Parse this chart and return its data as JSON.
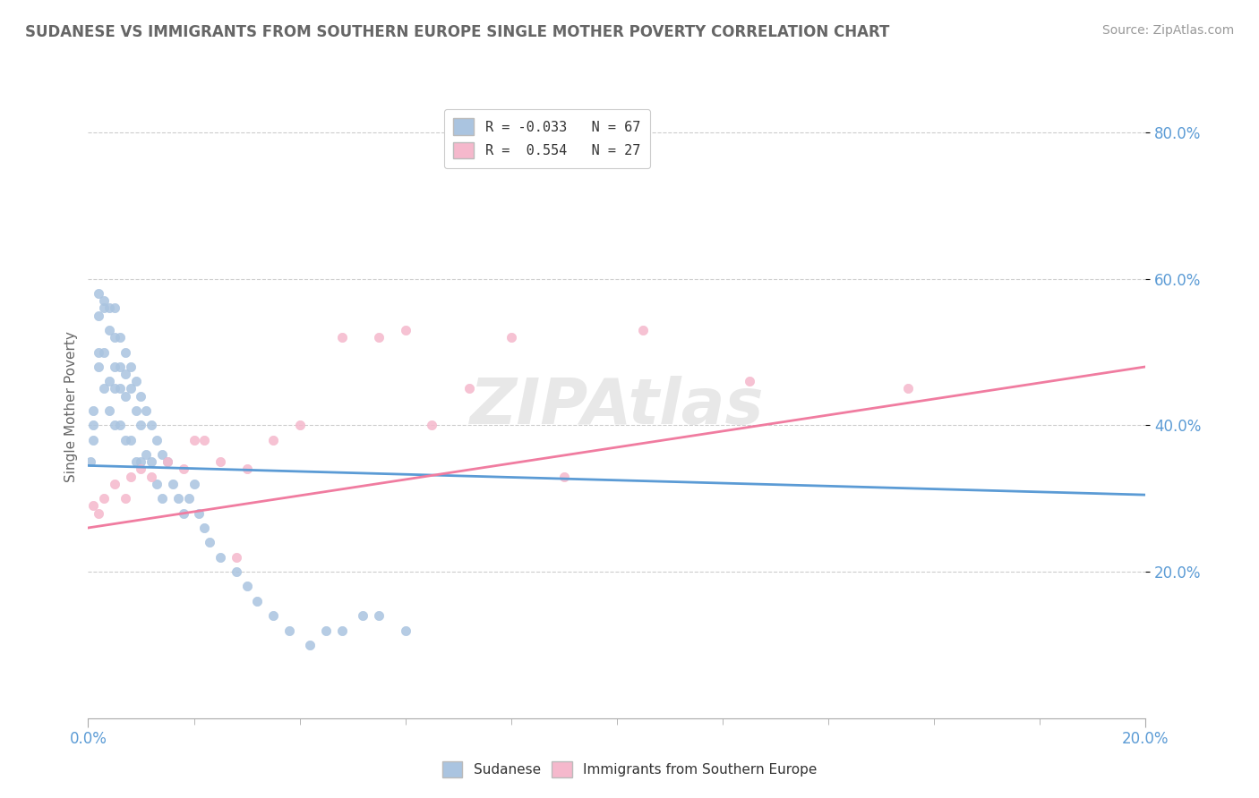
{
  "title": "SUDANESE VS IMMIGRANTS FROM SOUTHERN EUROPE SINGLE MOTHER POVERTY CORRELATION CHART",
  "source": "Source: ZipAtlas.com",
  "ylabel": "Single Mother Poverty",
  "xlim": [
    0.0,
    0.2
  ],
  "ylim": [
    0.0,
    0.85
  ],
  "y_ticks": [
    0.2,
    0.4,
    0.6,
    0.8
  ],
  "y_tick_labels": [
    "20.0%",
    "40.0%",
    "60.0%",
    "80.0%"
  ],
  "sudanese_color": "#aac4e0",
  "southern_europe_color": "#f5b8cc",
  "sudanese_line_color": "#5b9bd5",
  "southern_europe_line_color": "#f07ca0",
  "sudanese_R": -0.033,
  "sudanese_N": 67,
  "southern_europe_R": 0.554,
  "southern_europe_N": 27,
  "sudanese_x": [
    0.0005,
    0.001,
    0.001,
    0.001,
    0.002,
    0.002,
    0.002,
    0.002,
    0.003,
    0.003,
    0.003,
    0.003,
    0.004,
    0.004,
    0.004,
    0.004,
    0.005,
    0.005,
    0.005,
    0.005,
    0.005,
    0.006,
    0.006,
    0.006,
    0.006,
    0.007,
    0.007,
    0.007,
    0.007,
    0.008,
    0.008,
    0.008,
    0.009,
    0.009,
    0.009,
    0.01,
    0.01,
    0.01,
    0.011,
    0.011,
    0.012,
    0.012,
    0.013,
    0.013,
    0.014,
    0.014,
    0.015,
    0.016,
    0.017,
    0.018,
    0.019,
    0.02,
    0.021,
    0.022,
    0.023,
    0.025,
    0.028,
    0.03,
    0.032,
    0.035,
    0.038,
    0.042,
    0.045,
    0.048,
    0.052,
    0.055,
    0.06
  ],
  "sudanese_y": [
    0.35,
    0.42,
    0.4,
    0.38,
    0.58,
    0.55,
    0.5,
    0.48,
    0.57,
    0.56,
    0.5,
    0.45,
    0.56,
    0.53,
    0.46,
    0.42,
    0.56,
    0.52,
    0.48,
    0.45,
    0.4,
    0.52,
    0.48,
    0.45,
    0.4,
    0.5,
    0.47,
    0.44,
    0.38,
    0.48,
    0.45,
    0.38,
    0.46,
    0.42,
    0.35,
    0.44,
    0.4,
    0.35,
    0.42,
    0.36,
    0.4,
    0.35,
    0.38,
    0.32,
    0.36,
    0.3,
    0.35,
    0.32,
    0.3,
    0.28,
    0.3,
    0.32,
    0.28,
    0.26,
    0.24,
    0.22,
    0.2,
    0.18,
    0.16,
    0.14,
    0.12,
    0.1,
    0.12,
    0.12,
    0.14,
    0.14,
    0.12
  ],
  "southern_europe_x": [
    0.001,
    0.002,
    0.003,
    0.005,
    0.007,
    0.008,
    0.01,
    0.012,
    0.015,
    0.018,
    0.02,
    0.022,
    0.025,
    0.028,
    0.03,
    0.035,
    0.04,
    0.048,
    0.055,
    0.06,
    0.065,
    0.072,
    0.08,
    0.09,
    0.105,
    0.125,
    0.155
  ],
  "southern_europe_y": [
    0.29,
    0.28,
    0.3,
    0.32,
    0.3,
    0.33,
    0.34,
    0.33,
    0.35,
    0.34,
    0.38,
    0.38,
    0.35,
    0.22,
    0.34,
    0.38,
    0.4,
    0.52,
    0.52,
    0.53,
    0.4,
    0.45,
    0.52,
    0.33,
    0.53,
    0.46,
    0.45
  ],
  "sudanese_line_x": [
    0.0,
    0.2
  ],
  "sudanese_line_y": [
    0.345,
    0.305
  ],
  "southern_europe_line_x": [
    0.0,
    0.2
  ],
  "southern_europe_line_y": [
    0.26,
    0.48
  ]
}
